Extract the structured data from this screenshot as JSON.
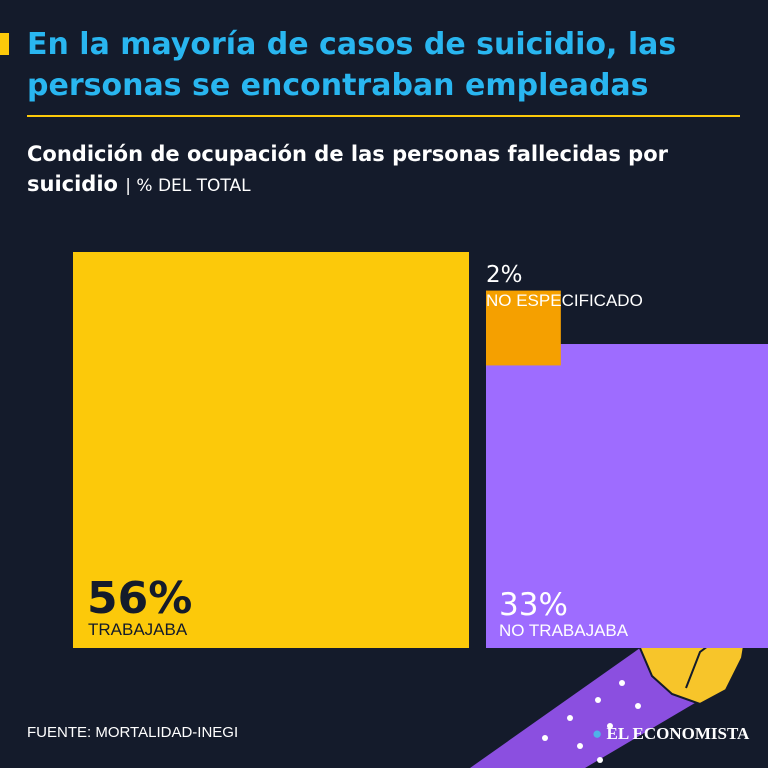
{
  "header": {
    "title": "En la mayoría de casos de suicidio, las personas se encontraban empleadas",
    "subtitle": "Condición de ocupación de las personas fallecidas por suicidio",
    "unit": "| % DEL TOTAL"
  },
  "footer": {
    "source": "FUENTE: MORTALIDAD-INEGI",
    "logo": "EL ECONOMISTA"
  },
  "colors": {
    "background": "#141b2b",
    "title": "#29b6f0",
    "accent": "#fcc90a",
    "trabajaba": "#fcc90a",
    "no_trabajaba": "#9e6cff",
    "no_especificado": "#f5a000"
  },
  "chart_data": {
    "type": "area",
    "unit": "% DEL TOTAL",
    "items": [
      {
        "label": "TRABAJABA",
        "value": 56,
        "value_text": "56%",
        "color": "#fcc90a"
      },
      {
        "label": "NO TRABAJABA",
        "value": 33,
        "value_text": "33%",
        "color": "#9e6cff"
      },
      {
        "label": "NO ESPECIFICADO",
        "value": 2,
        "value_text": "2%",
        "color": "#f5a000"
      }
    ]
  }
}
